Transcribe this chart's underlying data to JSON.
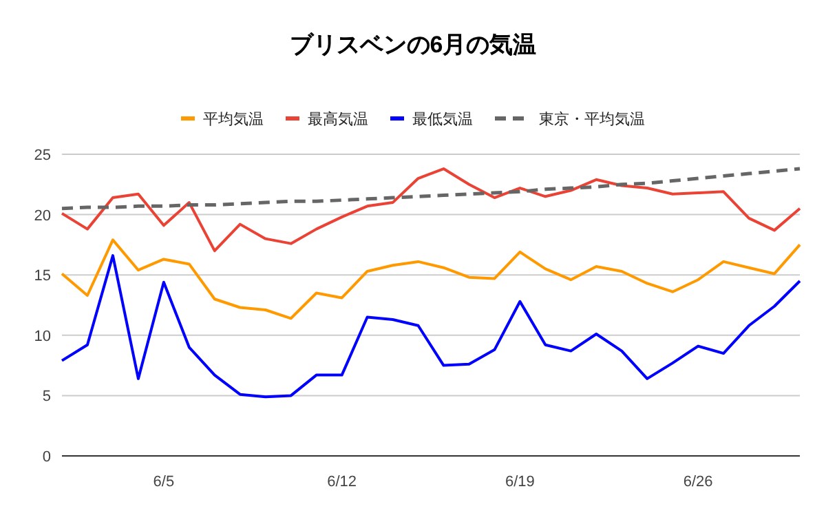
{
  "chart_data": {
    "type": "line",
    "title": "ブリスベンの6月の気温",
    "categories": [
      null,
      null,
      null,
      null,
      "6/5",
      null,
      null,
      null,
      null,
      null,
      null,
      "6/12",
      null,
      null,
      null,
      null,
      null,
      null,
      "6/19",
      null,
      null,
      null,
      null,
      null,
      null,
      "6/26",
      null,
      null,
      null,
      null
    ],
    "series": [
      {
        "name": "平均気温",
        "color": "#ff9900",
        "values": [
          15.1,
          13.3,
          17.9,
          15.4,
          16.3,
          15.9,
          13.0,
          12.3,
          12.1,
          11.4,
          13.5,
          13.1,
          15.3,
          15.8,
          16.1,
          15.6,
          14.8,
          14.7,
          16.9,
          15.5,
          14.6,
          15.7,
          15.3,
          14.3,
          13.6,
          14.6,
          16.1,
          15.6,
          15.1,
          17.5
        ]
      },
      {
        "name": "最高気温",
        "color": "#ea4335",
        "values": [
          20.1,
          18.8,
          21.4,
          21.7,
          19.1,
          21.0,
          17.0,
          19.2,
          18.0,
          17.6,
          18.8,
          19.8,
          20.7,
          21.0,
          23.0,
          23.8,
          22.5,
          21.4,
          22.2,
          21.5,
          22.0,
          22.9,
          22.4,
          22.2,
          21.7,
          21.8,
          21.9,
          19.7,
          18.7,
          20.5
        ]
      },
      {
        "name": "最低気温",
        "color": "#0000ff",
        "values": [
          7.9,
          9.2,
          16.6,
          6.4,
          14.4,
          9.0,
          6.7,
          5.1,
          4.9,
          5.0,
          6.7,
          6.7,
          11.5,
          11.3,
          10.8,
          7.5,
          7.6,
          8.8,
          12.8,
          9.2,
          8.7,
          10.1,
          8.7,
          6.4,
          7.7,
          9.1,
          8.5,
          10.8,
          12.4,
          14.5
        ]
      },
      {
        "name": "東京・平均気温",
        "color": "#666666",
        "line_style": "dashed",
        "values": [
          20.5,
          20.6,
          20.6,
          20.7,
          20.7,
          20.8,
          20.8,
          20.9,
          21.0,
          21.1,
          21.1,
          21.2,
          21.3,
          21.4,
          21.5,
          21.6,
          21.7,
          21.8,
          21.9,
          22.1,
          22.2,
          22.3,
          22.5,
          22.6,
          22.8,
          23.0,
          23.2,
          23.4,
          23.6,
          23.8
        ]
      }
    ],
    "ylim": [
      0,
      25
    ],
    "yticks": [
      0,
      5,
      10,
      15,
      20,
      25
    ],
    "grid": "y",
    "legend": "top",
    "marker": "none"
  }
}
